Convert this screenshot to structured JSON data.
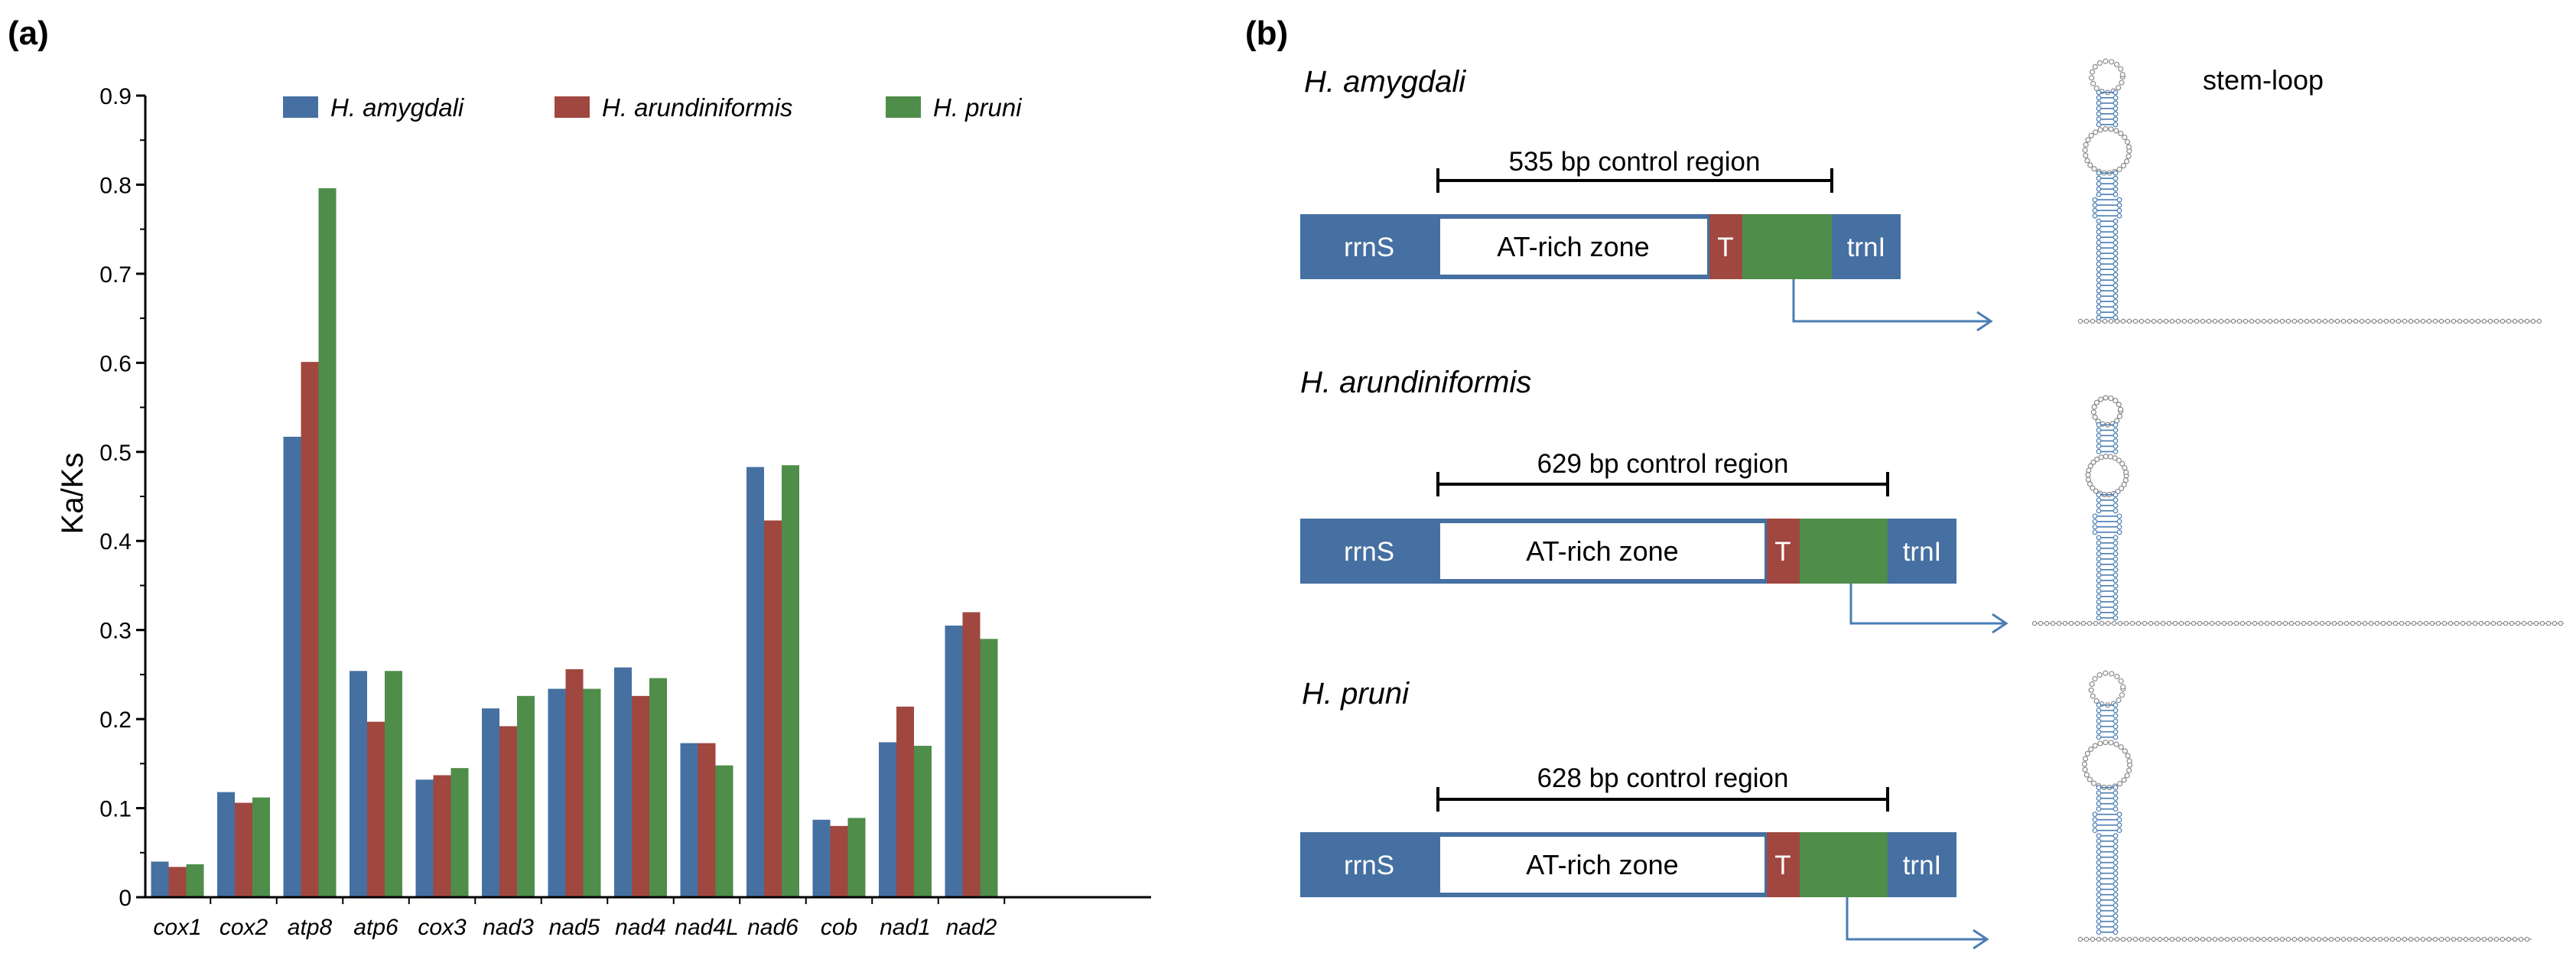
{
  "panel_a_label": "(a)",
  "panel_b_label": "(b)",
  "chart_data": {
    "type": "bar",
    "title": "",
    "xlabel": "",
    "ylabel": "Ka/Ks",
    "ylim": [
      0,
      0.9
    ],
    "yticks": [
      "0",
      "0.1",
      "0.2",
      "0.3",
      "0.4",
      "0.5",
      "0.6",
      "0.7",
      "0.8",
      "0.9"
    ],
    "legend_position": "top",
    "categories": [
      "cox1",
      "cox2",
      "atp8",
      "atp6",
      "cox3",
      "nad3",
      "nad5",
      "nad4",
      "nad4L",
      "nad6",
      "cob",
      "nad1",
      "nad2"
    ],
    "series": [
      {
        "name": "H. amygdali",
        "color": "#4570A1",
        "values": [
          0.04,
          0.118,
          0.517,
          0.254,
          0.132,
          0.212,
          0.234,
          0.258,
          0.173,
          0.483,
          0.087,
          0.174,
          0.305
        ]
      },
      {
        "name": "H. arundiniformis",
        "color": "#A0473F",
        "values": [
          0.034,
          0.106,
          0.601,
          0.197,
          0.137,
          0.192,
          0.256,
          0.226,
          0.173,
          0.423,
          0.08,
          0.214,
          0.32
        ]
      },
      {
        "name": "H. pruni",
        "color": "#4F8D4A",
        "values": [
          0.037,
          0.112,
          0.796,
          0.254,
          0.145,
          0.226,
          0.234,
          0.246,
          0.148,
          0.485,
          0.089,
          0.17,
          0.29
        ]
      }
    ]
  },
  "control_regions": [
    {
      "species": "H. amygdali",
      "bracket_label": "535 bp control region",
      "left_gene": "rrnS",
      "zone_label": "AT-rich zone",
      "t_label": "T",
      "right_gene": "trnI",
      "stem_loop_label": "stem-loop"
    },
    {
      "species": "H. arundiniformis",
      "bracket_label": "629 bp control region",
      "left_gene": "rrnS",
      "zone_label": "AT-rich zone",
      "t_label": "T",
      "right_gene": "trnI"
    },
    {
      "species": "H. pruni",
      "bracket_label": "628 bp control region",
      "left_gene": "rrnS",
      "zone_label": "AT-rich zone",
      "t_label": "T",
      "right_gene": "trnI"
    }
  ],
  "colors": {
    "gene_block": "#4570A1",
    "t_block": "#A0473F",
    "green_block": "#4F8D4A",
    "arrow": "#4A7DB5"
  }
}
